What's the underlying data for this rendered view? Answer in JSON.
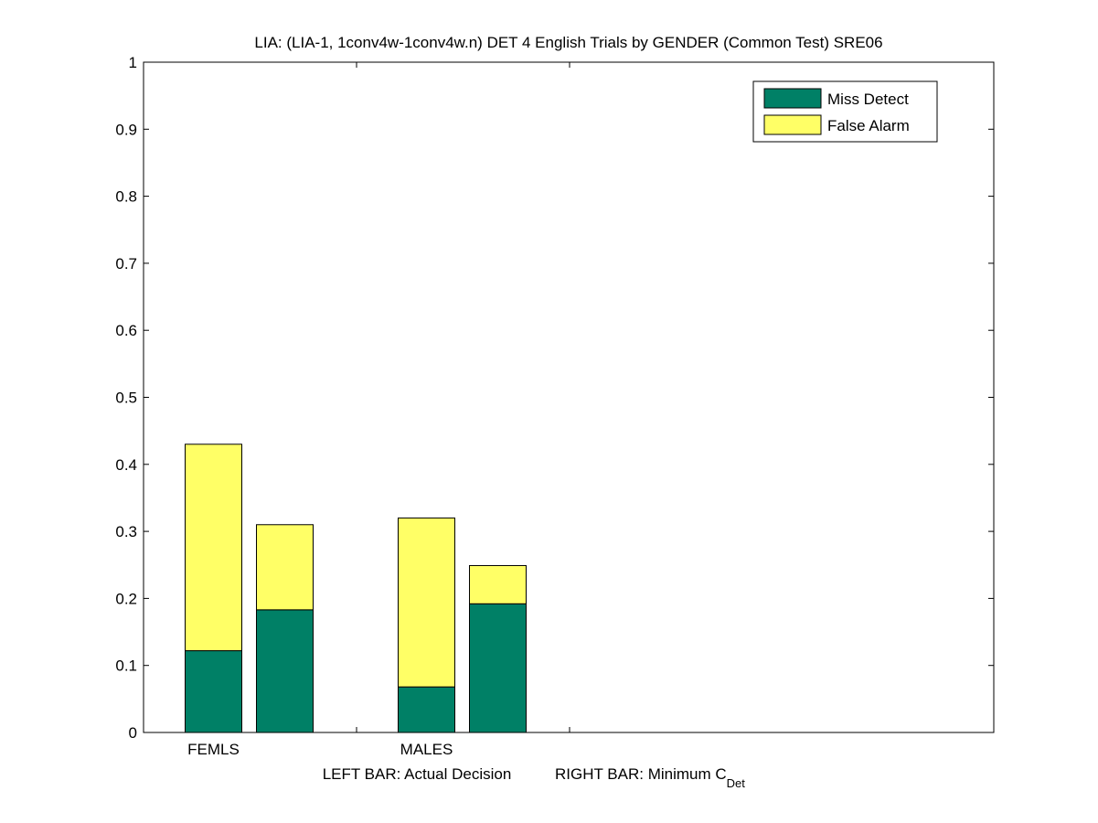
{
  "chart_data": {
    "type": "bar",
    "stacked": true,
    "title": "LIA: (LIA-1, 1conv4w-1conv4w.n) DET 4 English Trials by GENDER (Common Test) SRE06",
    "xlabel_parts": {
      "left": "LEFT BAR: Actual Decision",
      "right": "RIGHT BAR: Minimum C",
      "right_subscript": "Det"
    },
    "ylabel": "",
    "ylim": [
      0,
      1
    ],
    "yticks": [
      "0",
      "0.1",
      "0.2",
      "0.3",
      "0.4",
      "0.5",
      "0.6",
      "0.7",
      "0.8",
      "0.9",
      "1"
    ],
    "groups": [
      "FEMLS",
      "MALES"
    ],
    "bars": [
      {
        "group": "FEMLS",
        "kind": "actual",
        "miss": 0.122,
        "false_alarm": 0.308
      },
      {
        "group": "FEMLS",
        "kind": "minimum",
        "miss": 0.183,
        "false_alarm": 0.127
      },
      {
        "group": "MALES",
        "kind": "actual",
        "miss": 0.068,
        "false_alarm": 0.252
      },
      {
        "group": "MALES",
        "kind": "minimum",
        "miss": 0.192,
        "false_alarm": 0.057
      }
    ],
    "series": [
      {
        "name": "Miss Detect",
        "color": "#008066"
      },
      {
        "name": "False Alarm",
        "color": "#ffff66"
      }
    ],
    "legend_position": "top-right",
    "grid": false
  }
}
